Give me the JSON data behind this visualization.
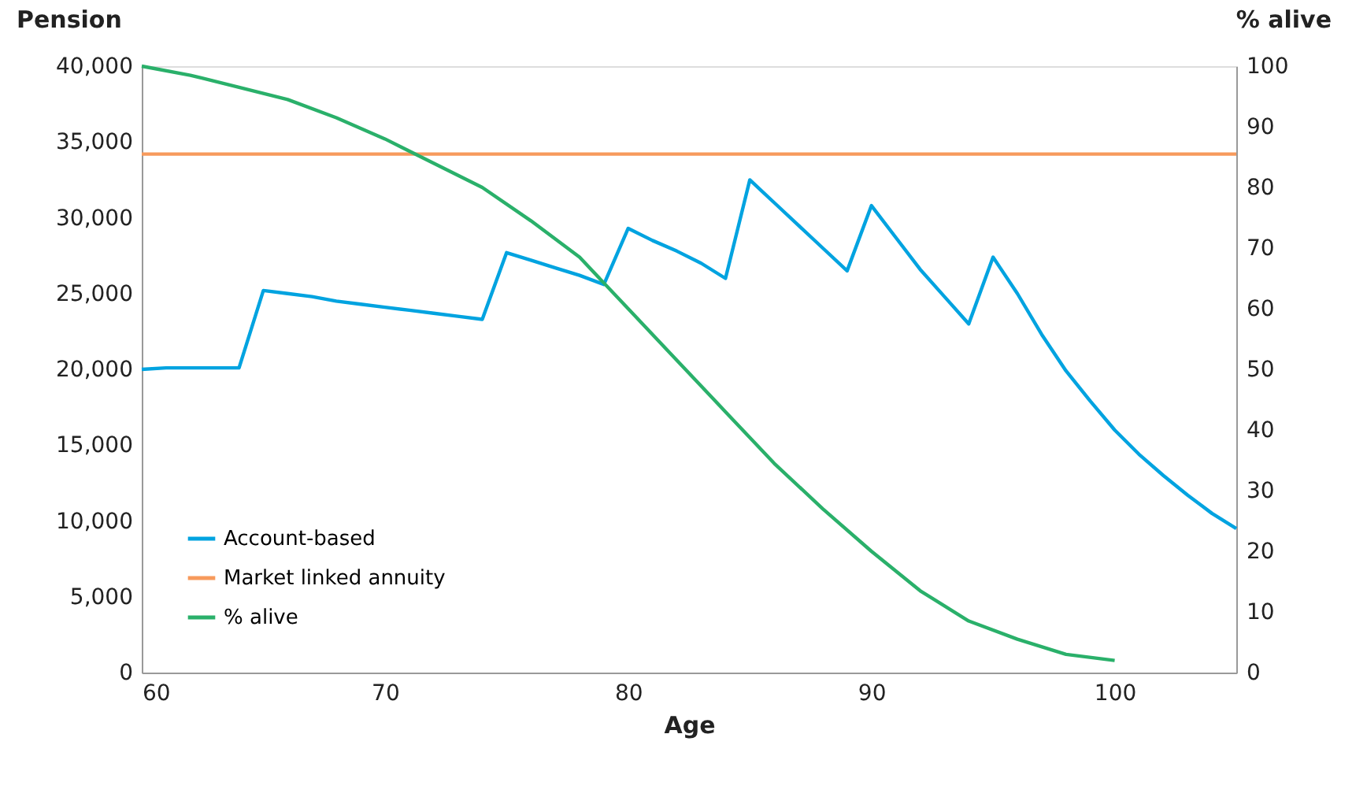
{
  "chart_data": {
    "type": "line",
    "xlabel": "Age",
    "ylabel": "Pension",
    "y2label": "% alive",
    "xlim": [
      60,
      105
    ],
    "xticks": [
      60,
      70,
      80,
      90,
      100
    ],
    "ylim": [
      0,
      40000
    ],
    "yticks": [
      0,
      {
        "value": 5000,
        "label": "5,000"
      },
      {
        "value": 10000,
        "label": "10,000"
      },
      {
        "value": 15000,
        "label": "15,000"
      },
      {
        "value": 20000,
        "label": "20,000"
      },
      {
        "value": 25000,
        "label": "25,000"
      },
      {
        "value": 30000,
        "label": "30,000"
      },
      {
        "value": 35000,
        "label": "35,000"
      },
      {
        "value": 40000,
        "label": "40,000"
      }
    ],
    "y2lim": [
      0,
      100
    ],
    "y2ticks": [
      0,
      10,
      20,
      30,
      40,
      50,
      60,
      70,
      80,
      90,
      100
    ],
    "grid": false,
    "legend": "bottom left",
    "marker": "none",
    "line_style": "solid",
    "series": [
      {
        "name": "Account-based",
        "color": "#00a3e0",
        "x": [
          60,
          61,
          62,
          63,
          64,
          65,
          66,
          67,
          68,
          69,
          70,
          71,
          72,
          73,
          74,
          75,
          76,
          77,
          78,
          79,
          80,
          81,
          82,
          83,
          84,
          85,
          86,
          87,
          88,
          89,
          90,
          91,
          92,
          93,
          94,
          95,
          96,
          97,
          98,
          99,
          100,
          101,
          102,
          103,
          104,
          105
        ],
        "values": [
          20000,
          20100,
          20100,
          20100,
          20100,
          25200,
          25000,
          24800,
          24500,
          24300,
          24100,
          23900,
          23700,
          23500,
          23300,
          27700,
          27200,
          26700,
          26200,
          25600,
          29300,
          28500,
          27800,
          27000,
          26000,
          32500,
          31000,
          29500,
          28000,
          26500,
          30800,
          28700,
          26600,
          24800,
          23000,
          27400,
          25000,
          22300,
          19900,
          17900,
          16000,
          14400,
          13000,
          11700,
          10500,
          9500
        ]
      },
      {
        "name": "Market linked annuity",
        "color": "#f79a5c",
        "x": [
          60,
          105
        ],
        "values": [
          34200,
          34200
        ]
      },
      {
        "name": "% alive",
        "color": "#2ab06a",
        "axis": "y2",
        "x": [
          60,
          62,
          64,
          66,
          68,
          70,
          72,
          74,
          76,
          78,
          80,
          82,
          84,
          86,
          88,
          90,
          92,
          94,
          96,
          98,
          100
        ],
        "values": [
          100,
          98.5,
          96.5,
          94.5,
          91.5,
          88,
          84,
          80,
          74.5,
          68.5,
          60,
          51.5,
          43,
          34.5,
          27,
          20,
          13.5,
          8.5,
          5.5,
          3,
          2
        ]
      }
    ]
  }
}
